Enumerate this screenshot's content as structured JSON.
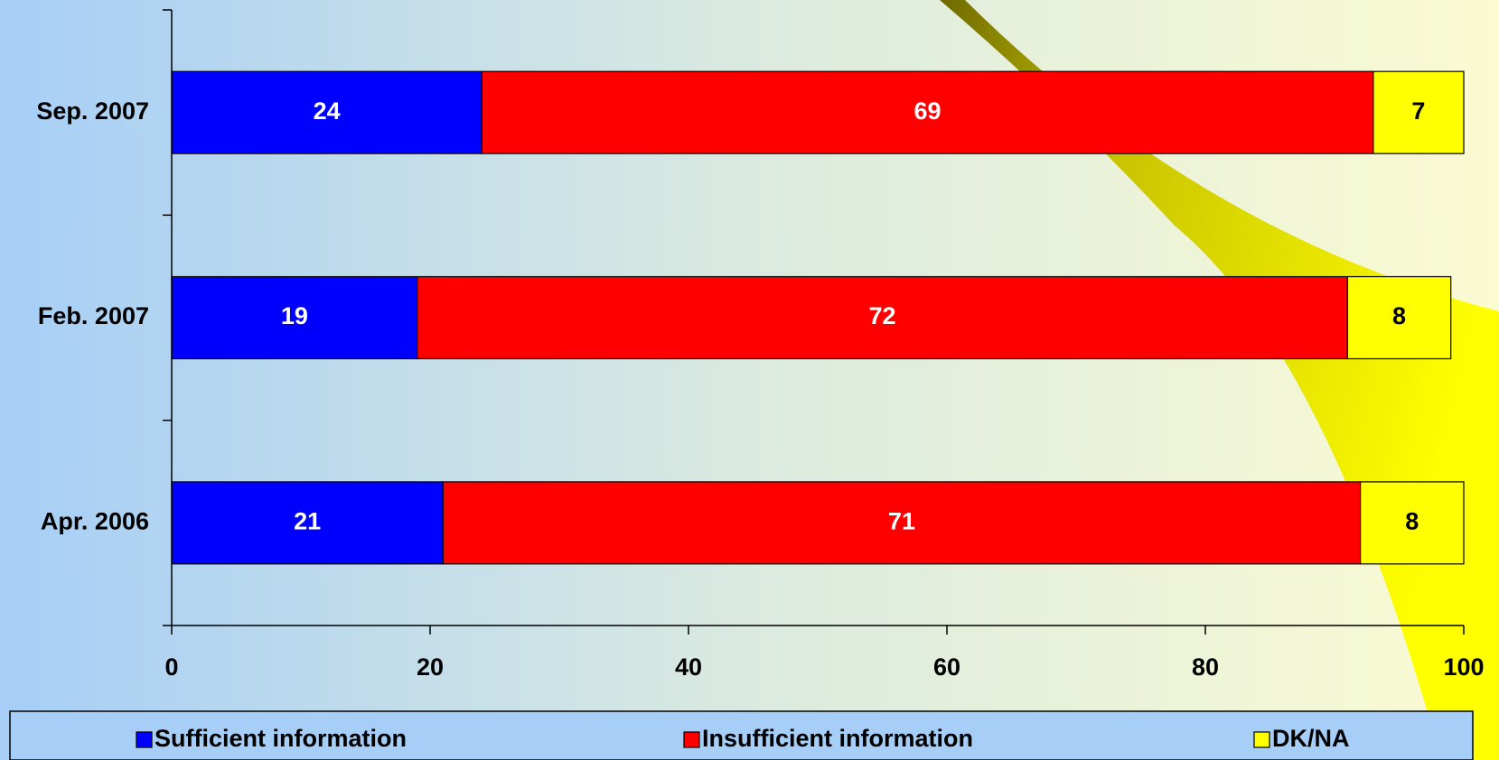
{
  "chart_data": {
    "type": "stacked-bar-horizontal",
    "categories": [
      "Sep. 2007",
      "Feb. 2007",
      "Apr. 2006"
    ],
    "series": [
      {
        "name": "Sufficient information",
        "color": "#0000ff",
        "values": [
          24,
          19,
          21
        ]
      },
      {
        "name": "Insufficient information",
        "color": "#ff0000",
        "values": [
          69,
          72,
          71
        ]
      },
      {
        "name": "DK/NA",
        "color": "#ffff00",
        "values": [
          7,
          8,
          8
        ]
      }
    ],
    "xlim": [
      0,
      100
    ],
    "xticks": [
      0,
      20,
      40,
      60,
      80,
      100
    ],
    "legend": "bottom"
  }
}
